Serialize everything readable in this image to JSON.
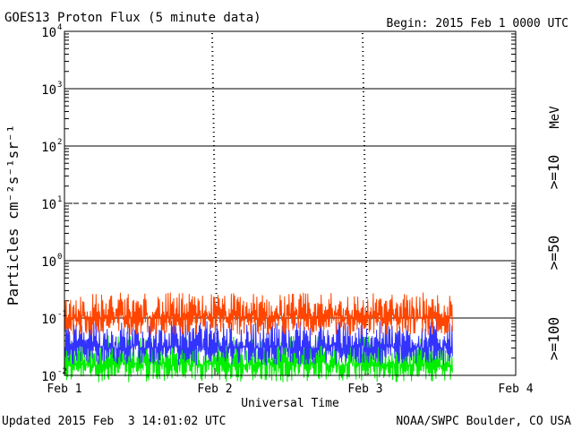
{
  "chart_data": {
    "type": "line",
    "title": "GOES13 Proton Flux (5 minute data)",
    "begin_label": "Begin: 2015 Feb 1 0000 UTC",
    "xlabel": "Universal Time",
    "ylabel": "Particles cm⁻²s⁻¹sr⁻¹",
    "updated_label": "Updated 2015 Feb  3 14:01:02 UTC",
    "source_label": "NOAA/SWPC Boulder, CO USA",
    "unit_label": "MeV",
    "y_scale": "log",
    "ylim_exp": [
      -2,
      4
    ],
    "xlim_days": [
      0,
      3
    ],
    "data_end_day": 2.58,
    "x_ticks": [
      {
        "label": "Feb 1",
        "day": 0
      },
      {
        "label": "Feb 2",
        "day": 1
      },
      {
        "label": "Feb 3",
        "day": 2
      },
      {
        "label": "Feb 4",
        "day": 3
      }
    ],
    "y_ticks": [
      {
        "base": "10",
        "exp": "-2",
        "value": -2
      },
      {
        "base": "10",
        "exp": "-1",
        "value": -1
      },
      {
        "base": "10",
        "exp": "0",
        "value": 0
      },
      {
        "base": "10",
        "exp": "1",
        "value": 1
      },
      {
        "base": "10",
        "exp": "2",
        "value": 2
      },
      {
        "base": "10",
        "exp": "3",
        "value": 3
      },
      {
        "base": "10",
        "exp": "4",
        "value": 4
      }
    ],
    "series": [
      {
        "name": ">=10",
        "color": "#ff4500",
        "baseline": 0.1,
        "spike_max": 0.28
      },
      {
        "name": ">=50",
        "color": "#3333ff",
        "baseline": 0.03,
        "spike_max": 0.09
      },
      {
        "name": ">=100",
        "color": "#00ee00",
        "baseline": 0.015,
        "spike_max": 0.05
      }
    ],
    "grid": "horizontal lines at each decade"
  }
}
